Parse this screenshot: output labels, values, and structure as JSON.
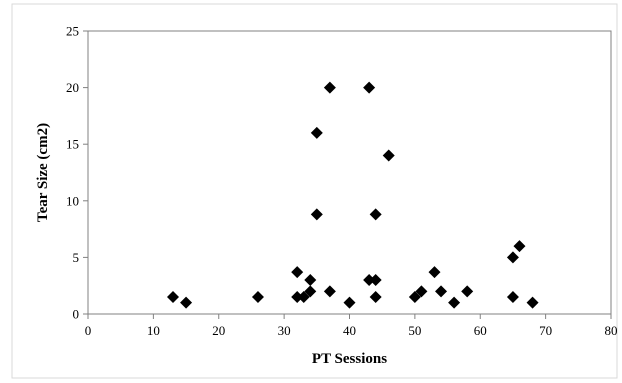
{
  "chart_data": {
    "type": "scatter",
    "title": "",
    "xlabel": "PT Sessions",
    "ylabel": "Tear Size (cm2)",
    "xlim": [
      0,
      80
    ],
    "ylim": [
      0,
      25
    ],
    "x_ticks": [
      0,
      10,
      20,
      30,
      40,
      50,
      60,
      70,
      80
    ],
    "y_ticks": [
      0,
      5,
      10,
      15,
      20,
      25
    ],
    "grid": false,
    "legend": "none",
    "marker": "diamond",
    "marker_color": "#000000",
    "series": [
      {
        "points": [
          {
            "x": 13,
            "y": 1.5
          },
          {
            "x": 15,
            "y": 1.0
          },
          {
            "x": 26,
            "y": 1.5
          },
          {
            "x": 32,
            "y": 3.7
          },
          {
            "x": 32,
            "y": 1.5
          },
          {
            "x": 33,
            "y": 1.5
          },
          {
            "x": 34,
            "y": 3.0
          },
          {
            "x": 34,
            "y": 2.0
          },
          {
            "x": 35,
            "y": 16.0
          },
          {
            "x": 35,
            "y": 8.8
          },
          {
            "x": 37,
            "y": 20.0
          },
          {
            "x": 37,
            "y": 2.0
          },
          {
            "x": 40,
            "y": 1.0
          },
          {
            "x": 43,
            "y": 20.0
          },
          {
            "x": 43,
            "y": 3.0
          },
          {
            "x": 44,
            "y": 8.8
          },
          {
            "x": 44,
            "y": 3.0
          },
          {
            "x": 44,
            "y": 1.5
          },
          {
            "x": 46,
            "y": 14.0
          },
          {
            "x": 50,
            "y": 1.5
          },
          {
            "x": 51,
            "y": 2.0
          },
          {
            "x": 53,
            "y": 3.7
          },
          {
            "x": 54,
            "y": 2.0
          },
          {
            "x": 56,
            "y": 1.0
          },
          {
            "x": 58,
            "y": 2.0
          },
          {
            "x": 65,
            "y": 5.0
          },
          {
            "x": 65,
            "y": 1.5
          },
          {
            "x": 66,
            "y": 6.0
          },
          {
            "x": 68,
            "y": 1.0
          }
        ]
      }
    ]
  }
}
